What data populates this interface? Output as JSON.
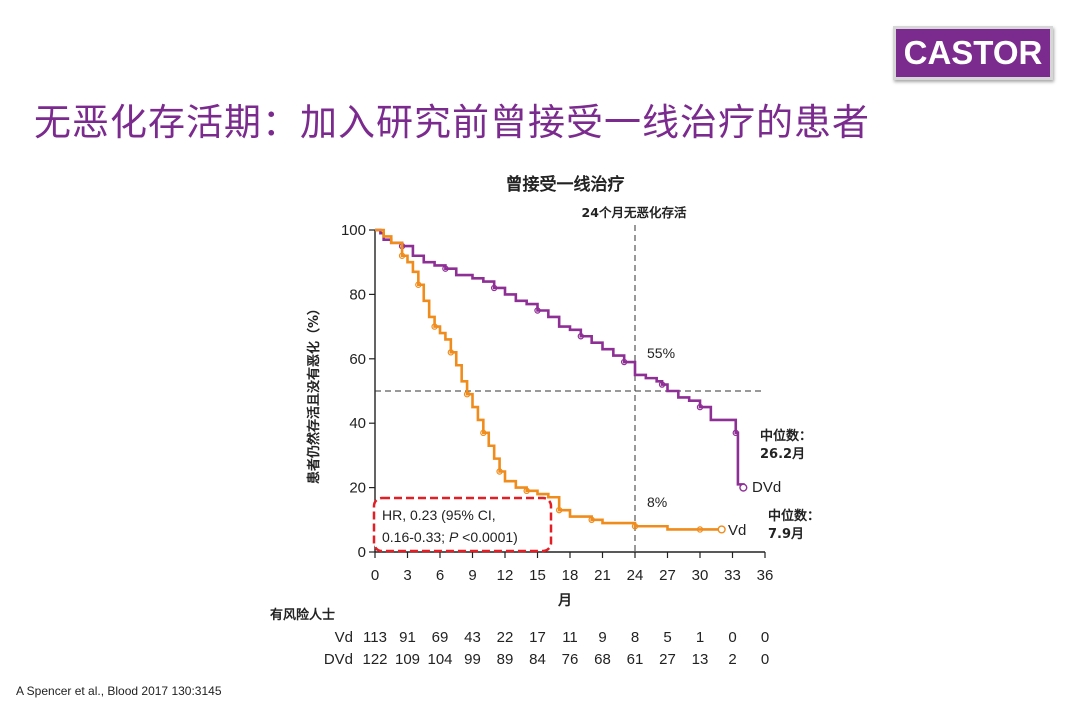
{
  "badge": {
    "label": "CASTOR"
  },
  "slide": {
    "title": "无恶化存活期：加入研究前曾接受一线治疗的患者",
    "citation": "A Spencer et al., Blood 2017 130:3145"
  },
  "colors": {
    "accent": "#7b2a8e",
    "dvd": "#8e2f95",
    "vd": "#f08c1c",
    "hr_box": "#e31e25"
  },
  "chart_data": {
    "type": "line",
    "title": "曾接受一线治疗",
    "xlabel": "月",
    "ylabel": "患者仍然存活且没有恶化（%）",
    "xlim": [
      0,
      36
    ],
    "ylim": [
      0,
      100
    ],
    "xticks": [
      0,
      3,
      6,
      9,
      12,
      15,
      18,
      21,
      24,
      27,
      30,
      33,
      36
    ],
    "yticks": [
      0,
      20,
      40,
      60,
      80,
      100
    ],
    "reference_line": {
      "x": 24,
      "y": 50,
      "label": "24个月无恶化存活"
    },
    "series": [
      {
        "name": "DVd",
        "label_at_24": "55%",
        "median_label": "中位数：",
        "median_value": "26.2月",
        "points": [
          [
            0,
            100
          ],
          [
            0.5,
            99
          ],
          [
            0.8,
            97
          ],
          [
            1.5,
            96
          ],
          [
            2.5,
            95
          ],
          [
            3.5,
            92
          ],
          [
            4.5,
            90
          ],
          [
            5.5,
            89
          ],
          [
            6.5,
            88
          ],
          [
            7.5,
            86
          ],
          [
            9,
            85
          ],
          [
            10,
            84
          ],
          [
            11,
            82
          ],
          [
            12,
            80
          ],
          [
            13,
            78
          ],
          [
            14,
            77
          ],
          [
            15,
            75
          ],
          [
            16,
            73
          ],
          [
            17,
            70
          ],
          [
            18,
            69
          ],
          [
            19,
            67
          ],
          [
            20,
            65
          ],
          [
            21,
            63
          ],
          [
            22,
            61
          ],
          [
            23,
            59
          ],
          [
            24,
            55
          ],
          [
            25,
            54
          ],
          [
            26,
            53
          ],
          [
            26.5,
            52
          ],
          [
            27,
            50
          ],
          [
            28,
            48
          ],
          [
            29,
            47
          ],
          [
            30,
            45
          ],
          [
            31,
            41
          ],
          [
            32,
            41
          ],
          [
            33,
            41
          ],
          [
            33.3,
            37
          ],
          [
            33.5,
            21
          ],
          [
            34,
            20
          ]
        ]
      },
      {
        "name": "Vd",
        "label_at_24": "8%",
        "median_label": "中位数：",
        "median_value": "7.9月",
        "points": [
          [
            0,
            100
          ],
          [
            0.8,
            98
          ],
          [
            1.5,
            96
          ],
          [
            2.5,
            92
          ],
          [
            3,
            90
          ],
          [
            3.5,
            87
          ],
          [
            4,
            83
          ],
          [
            4.5,
            78
          ],
          [
            5,
            73
          ],
          [
            5.5,
            70
          ],
          [
            6,
            68
          ],
          [
            6.5,
            66
          ],
          [
            7,
            62
          ],
          [
            7.5,
            58
          ],
          [
            8,
            53
          ],
          [
            8.5,
            49
          ],
          [
            9,
            45
          ],
          [
            9.5,
            41
          ],
          [
            10,
            37
          ],
          [
            10.5,
            33
          ],
          [
            11,
            29
          ],
          [
            11.5,
            25
          ],
          [
            12,
            22
          ],
          [
            13,
            20
          ],
          [
            14,
            19
          ],
          [
            15,
            18
          ],
          [
            16,
            17
          ],
          [
            17,
            13
          ],
          [
            18,
            11
          ],
          [
            19,
            11
          ],
          [
            20,
            10
          ],
          [
            21,
            9
          ],
          [
            22,
            9
          ],
          [
            24,
            8
          ],
          [
            25,
            8
          ],
          [
            27,
            7
          ],
          [
            30,
            7
          ],
          [
            32,
            7
          ]
        ]
      }
    ],
    "hr_annotation": {
      "line1": "HR, 0.23 (95% CI,",
      "line2_prefix": "0.16-0.33; ",
      "line2_p": "P",
      "line2_suffix": " <0.0001)"
    },
    "risk_table": {
      "title": "有风险人士",
      "rows": [
        {
          "name": "Vd",
          "values": [
            113,
            91,
            69,
            43,
            22,
            17,
            11,
            9,
            8,
            5,
            1,
            0,
            0
          ]
        },
        {
          "name": "DVd",
          "values": [
            122,
            109,
            104,
            99,
            89,
            84,
            76,
            68,
            61,
            27,
            13,
            2,
            0
          ]
        }
      ]
    }
  }
}
